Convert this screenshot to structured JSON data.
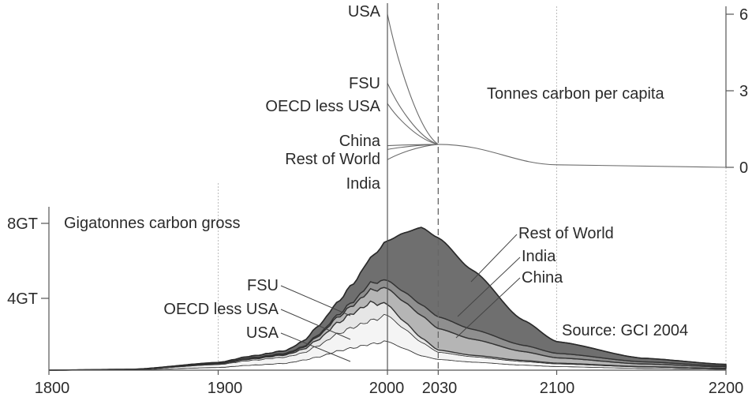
{
  "chart_data": [
    {
      "type": "line",
      "title": "Tonnes carbon per capita",
      "ylim": [
        0,
        6.3
      ],
      "y_ticks": [
        "0",
        "3",
        "6"
      ],
      "series": [
        {
          "name": "USA",
          "x": [
            2000,
            2030,
            2100,
            2200
          ],
          "values": [
            6.0,
            0.9,
            0.1,
            0.0
          ]
        },
        {
          "name": "FSU",
          "x": [
            2000,
            2030,
            2100,
            2200
          ],
          "values": [
            3.3,
            0.9,
            0.1,
            0.0
          ]
        },
        {
          "name": "OECD less USA",
          "x": [
            2000,
            2030,
            2100,
            2200
          ],
          "values": [
            2.5,
            0.9,
            0.1,
            0.0
          ]
        },
        {
          "name": "China",
          "x": [
            2000,
            2030,
            2100,
            2200
          ],
          "values": [
            0.85,
            0.9,
            0.1,
            0.0
          ]
        },
        {
          "name": "Rest of World",
          "x": [
            2000,
            2030,
            2100,
            2200
          ],
          "values": [
            0.7,
            0.9,
            0.1,
            0.0
          ]
        },
        {
          "name": "India",
          "x": [
            2000,
            2030,
            2100,
            2200
          ],
          "values": [
            0.3,
            0.9,
            0.1,
            0.0
          ]
        }
      ]
    },
    {
      "type": "area",
      "title": "Gigatonnes carbon gross",
      "source": "Source: GCI 2004",
      "x_ticks": [
        "1800",
        "1900",
        "2000",
        "2030",
        "2100",
        "2200"
      ],
      "y_ticks": [
        "4GT",
        "8GT"
      ],
      "ylim": [
        0,
        9
      ],
      "x": [
        1800,
        1850,
        1900,
        1920,
        1940,
        1950,
        1960,
        1970,
        1980,
        1990,
        2000,
        2010,
        2020,
        2030,
        2050,
        2080,
        2100,
        2150,
        2200
      ],
      "series": [
        {
          "name": "USA",
          "values": [
            0,
            0.02,
            0.15,
            0.28,
            0.38,
            0.55,
            0.75,
            1.05,
            1.25,
            1.45,
            1.6,
            1.2,
            0.8,
            0.6,
            0.45,
            0.28,
            0.2,
            0.1,
            0.05
          ]
        },
        {
          "name": "OECD less USA",
          "values": [
            0,
            0.02,
            0.16,
            0.27,
            0.35,
            0.4,
            0.65,
            0.95,
            1.15,
            1.3,
            1.45,
            1.1,
            0.75,
            0.4,
            0.3,
            0.2,
            0.15,
            0.08,
            0.04
          ]
        },
        {
          "name": "FSU",
          "values": [
            0,
            0.0,
            0.04,
            0.08,
            0.12,
            0.2,
            0.35,
            0.6,
            0.8,
            1.0,
            0.6,
            0.4,
            0.25,
            0.12,
            0.08,
            0.06,
            0.04,
            0.02,
            0.01
          ]
        },
        {
          "name": "China",
          "values": [
            0,
            0.0,
            0.02,
            0.04,
            0.06,
            0.1,
            0.2,
            0.3,
            0.45,
            0.7,
            0.9,
            1.1,
            1.25,
            1.2,
            0.9,
            0.5,
            0.3,
            0.15,
            0.08
          ]
        },
        {
          "name": "India",
          "values": [
            0,
            0.0,
            0.01,
            0.02,
            0.03,
            0.05,
            0.08,
            0.12,
            0.2,
            0.4,
            0.45,
            0.55,
            0.6,
            0.65,
            0.55,
            0.35,
            0.25,
            0.12,
            0.06
          ]
        },
        {
          "name": "Rest of World",
          "values": [
            0,
            0.01,
            0.05,
            0.1,
            0.15,
            0.3,
            0.5,
            0.7,
            1.0,
            1.4,
            2.2,
            3.3,
            4.3,
            4.4,
            3.3,
            1.4,
            0.65,
            0.2,
            0.08
          ]
        }
      ]
    }
  ],
  "colors": {
    "USA": "#ffffff",
    "OECD less USA": "#f4f4f4",
    "FSU": "#e6e6e6",
    "China": "#b5b5b5",
    "India": "#8f8f8f",
    "Rest of World": "#6f6f6f",
    "outline": "#333333"
  }
}
